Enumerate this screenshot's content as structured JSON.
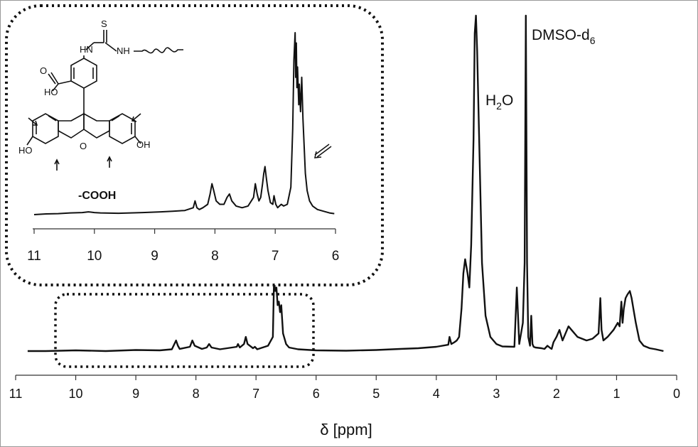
{
  "chart_data": [
    {
      "type": "line",
      "title": "",
      "xlabel": "δ [ppm]",
      "ylabel": "",
      "xlim": [
        11,
        0
      ],
      "x_reversed": true,
      "x_ticks": [
        11,
        10,
        9,
        8,
        7,
        6,
        5,
        4,
        3,
        2,
        1,
        0
      ],
      "grid": false,
      "series": [
        {
          "name": "",
          "x": [
            10.8,
            10.5,
            10.0,
            9.5,
            9.0,
            8.6,
            8.4,
            8.33,
            8.3,
            8.27,
            8.1,
            8.06,
            8.02,
            7.9,
            7.82,
            7.78,
            7.74,
            7.6,
            7.32,
            7.3,
            7.27,
            7.2,
            7.17,
            7.14,
            7.05,
            7.02,
            6.98,
            6.8,
            6.72,
            6.7,
            6.68,
            6.66,
            6.64,
            6.62,
            6.6,
            6.58,
            6.55,
            6.5,
            6.45,
            6.3,
            6.0,
            5.5,
            5.0,
            4.6,
            4.3,
            4.0,
            3.8,
            3.78,
            3.75,
            3.7,
            3.66,
            3.62,
            3.58,
            3.55,
            3.52,
            3.48,
            3.45,
            3.42,
            3.38,
            3.36,
            3.34,
            3.32,
            3.28,
            3.24,
            3.18,
            3.1,
            3.0,
            2.9,
            2.7,
            2.66,
            2.62,
            2.56,
            2.53,
            2.51,
            2.49,
            2.47,
            2.44,
            2.42,
            2.4,
            2.38,
            2.35,
            2.25,
            2.2,
            2.15,
            2.1,
            2.08,
            2.05,
            2.0,
            1.95,
            1.9,
            1.85,
            1.8,
            1.75,
            1.65,
            1.5,
            1.4,
            1.3,
            1.27,
            1.25,
            1.22,
            1.15,
            1.05,
            0.98,
            0.95,
            0.92,
            0.9,
            0.88,
            0.85,
            0.82,
            0.78,
            0.75,
            0.72,
            0.68,
            0.62,
            0.55,
            0.45,
            0.35,
            0.22
          ],
          "y": [
            0,
            0,
            0.2,
            0,
            0.3,
            0.2,
            0.5,
            3,
            1.5,
            0.6,
            1.2,
            3,
            1.5,
            0.6,
            1.0,
            2.0,
            1.0,
            0.5,
            1.2,
            2.0,
            1.0,
            2.0,
            4.0,
            2.0,
            0.8,
            1.2,
            0.5,
            1.5,
            4.0,
            20,
            17,
            18,
            13,
            14,
            11,
            13,
            5,
            2,
            1,
            0.5,
            0.2,
            0.1,
            0.3,
            0.6,
            0.8,
            1.2,
            1.8,
            4,
            2,
            2.5,
            3,
            4,
            12,
            22,
            26,
            22,
            18,
            30,
            60,
            90,
            95,
            85,
            55,
            25,
            10,
            4,
            2,
            1.3,
            1.2,
            18,
            2,
            8,
            25,
            95,
            25,
            4,
            1.5,
            10,
            2,
            1.2,
            1.0,
            0.8,
            0.6,
            1.5,
            0.8,
            0.6,
            2.5,
            4,
            6,
            3,
            5,
            7,
            6,
            4,
            3,
            3.5,
            5,
            15,
            6,
            3,
            4,
            6,
            8,
            7,
            14,
            8,
            12,
            15,
            16,
            17,
            15,
            12,
            8,
            3,
            1.5,
            0.8,
            0.5,
            0
          ]
        }
      ],
      "annotations": [
        {
          "text": "H₂O",
          "x": 3.3
        },
        {
          "text": "DMSO-d₆",
          "x": 2.5
        }
      ]
    },
    {
      "type": "line",
      "title": "",
      "xlabel": "",
      "ylabel": "",
      "xlim": [
        11,
        6
      ],
      "x_reversed": true,
      "x_ticks": [
        11,
        10,
        9,
        8,
        7,
        6
      ],
      "grid": false,
      "series": [
        {
          "name": "",
          "x": [
            11.0,
            10.8,
            10.6,
            10.4,
            10.2,
            10.1,
            10.0,
            9.9,
            9.6,
            9.2,
            8.9,
            8.7,
            8.5,
            8.36,
            8.33,
            8.3,
            8.26,
            8.2,
            8.12,
            8.08,
            8.05,
            8.02,
            7.98,
            7.92,
            7.85,
            7.8,
            7.76,
            7.72,
            7.65,
            7.55,
            7.45,
            7.36,
            7.33,
            7.3,
            7.27,
            7.24,
            7.21,
            7.19,
            7.17,
            7.15,
            7.12,
            7.08,
            7.04,
            7.02,
            6.99,
            6.96,
            6.93,
            6.9,
            6.86,
            6.8,
            6.74,
            6.71,
            6.69,
            6.67,
            6.66,
            6.65,
            6.64,
            6.63,
            6.61,
            6.6,
            6.58,
            6.56,
            6.54,
            6.52,
            6.5,
            6.47,
            6.43,
            6.38,
            6.3,
            6.2,
            6.1,
            6.02
          ],
          "y": [
            0,
            0.2,
            0.3,
            0.5,
            0.6,
            0.8,
            0.6,
            0.5,
            0.4,
            0.6,
            0.8,
            1.0,
            1.2,
            2.0,
            4.0,
            2.0,
            1.5,
            2.0,
            3.0,
            6.0,
            9.0,
            7.0,
            4.0,
            3.0,
            3.0,
            5.0,
            6.0,
            4.0,
            2.5,
            2.0,
            2.5,
            5.0,
            9.0,
            6.0,
            4.0,
            5.0,
            9.0,
            12,
            14,
            11,
            7.0,
            3.5,
            3.0,
            5.5,
            3.0,
            2.0,
            2.5,
            3.0,
            2.5,
            3.0,
            8.0,
            25,
            45,
            53,
            40,
            50,
            37,
            43,
            32,
            38,
            30,
            40,
            28,
            20,
            12,
            7.0,
            4.0,
            2.5,
            1.5,
            1.0,
            0.5,
            0.3
          ]
        }
      ],
      "annotations": [
        {
          "text": "-COOH",
          "x": 10.2
        },
        {
          "text": "HO",
          "role": "structure-label"
        },
        {
          "text": "OH",
          "role": "structure-label"
        },
        {
          "text": "HO",
          "role": "structure-label"
        },
        {
          "text": "O",
          "role": "structure-label"
        },
        {
          "text": "OH",
          "role": "structure-label"
        },
        {
          "text": "HN",
          "role": "structure-label"
        },
        {
          "text": "NH",
          "role": "structure-label"
        },
        {
          "text": "S",
          "role": "structure-label"
        }
      ]
    }
  ]
}
